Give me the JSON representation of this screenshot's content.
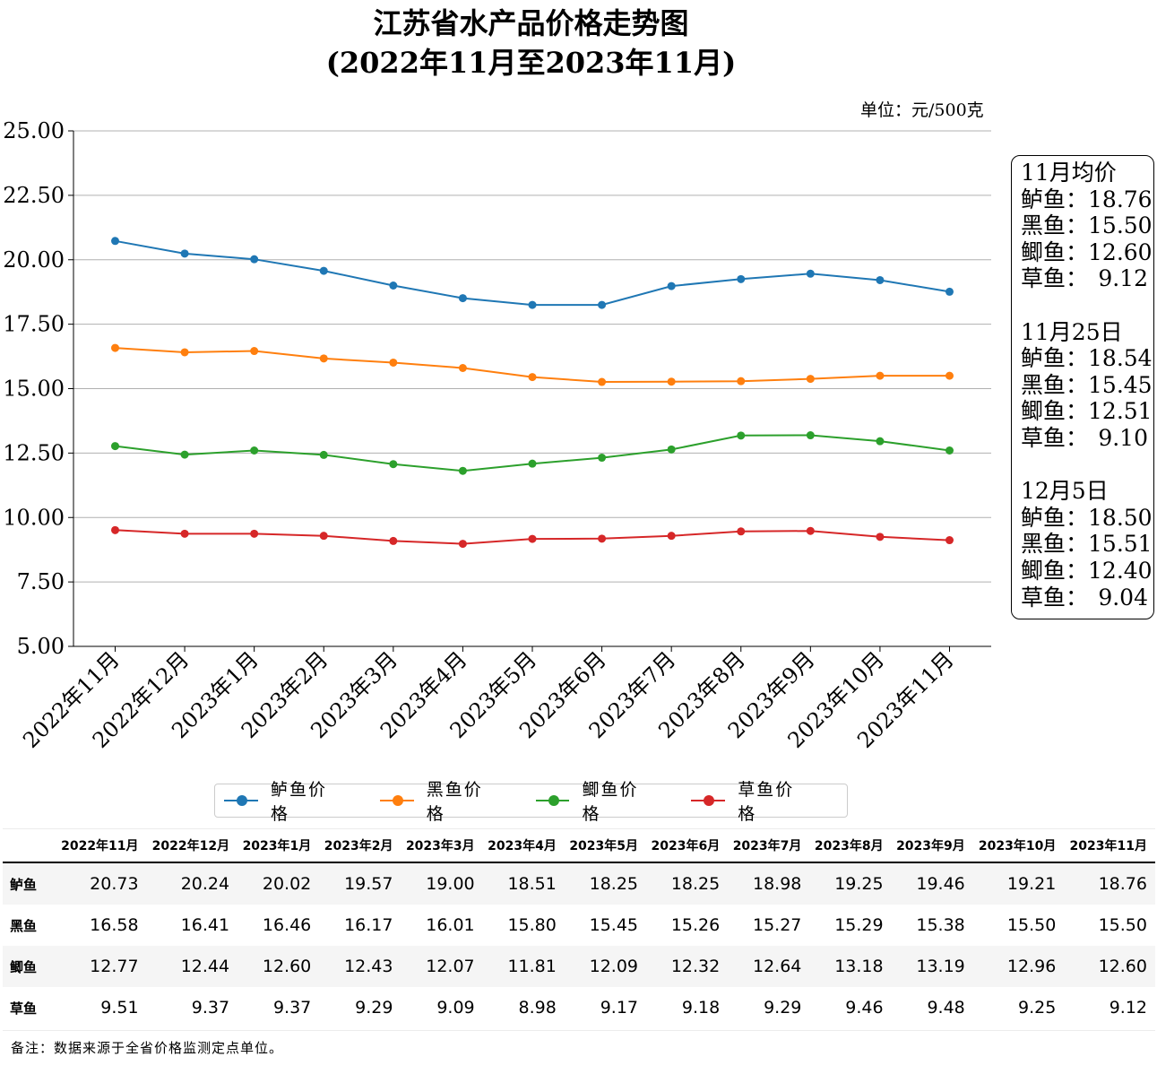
{
  "chart_data": {
    "type": "line",
    "title": "江苏省水产品价格走势图",
    "subtitle": "(2022年11月至2023年11月)",
    "unit": "单位：元/500克",
    "ylim": [
      5.0,
      25.0
    ],
    "yticks": [
      "5.00",
      "7.50",
      "10.00",
      "12.50",
      "15.00",
      "17.50",
      "20.00",
      "22.50",
      "25.00"
    ],
    "grid": true,
    "legend_position": "bottom-center",
    "categories": [
      "2022年11月",
      "2022年12月",
      "2023年1月",
      "2023年2月",
      "2023年3月",
      "2023年4月",
      "2023年5月",
      "2023年6月",
      "2023年7月",
      "2023年8月",
      "2023年9月",
      "2023年10月",
      "2023年11月"
    ],
    "series": [
      {
        "name": "鲈鱼价格",
        "color": "#1f77b4",
        "values": [
          20.73,
          20.24,
          20.02,
          19.57,
          19.0,
          18.51,
          18.25,
          18.25,
          18.98,
          19.25,
          19.46,
          19.21,
          18.76
        ]
      },
      {
        "name": "黑鱼价格",
        "color": "#ff7f0e",
        "values": [
          16.58,
          16.41,
          16.46,
          16.17,
          16.01,
          15.8,
          15.45,
          15.26,
          15.27,
          15.29,
          15.38,
          15.5,
          15.5
        ]
      },
      {
        "name": "鲫鱼价格",
        "color": "#2ca02c",
        "values": [
          12.77,
          12.44,
          12.6,
          12.43,
          12.07,
          11.81,
          12.09,
          12.32,
          12.64,
          13.18,
          13.19,
          12.96,
          12.6
        ]
      },
      {
        "name": "草鱼价格",
        "color": "#d62728",
        "values": [
          9.51,
          9.37,
          9.37,
          9.29,
          9.09,
          8.98,
          9.17,
          9.18,
          9.29,
          9.46,
          9.48,
          9.25,
          9.12
        ]
      }
    ]
  },
  "infobox": {
    "sections": [
      {
        "heading": "11月均价",
        "rows": [
          {
            "label": "鲈鱼：",
            "value": "18.76"
          },
          {
            "label": "黑鱼：",
            "value": "15.50"
          },
          {
            "label": "鲫鱼：",
            "value": "12.60"
          },
          {
            "label": "草鱼：",
            "value": "9.12"
          }
        ]
      },
      {
        "heading": "11月25日",
        "rows": [
          {
            "label": "鲈鱼：",
            "value": "18.54"
          },
          {
            "label": "黑鱼：",
            "value": "15.45"
          },
          {
            "label": "鲫鱼：",
            "value": "12.51"
          },
          {
            "label": "草鱼：",
            "value": "9.10"
          }
        ]
      },
      {
        "heading": "12月5日",
        "rows": [
          {
            "label": "鲈鱼：",
            "value": "18.50"
          },
          {
            "label": "黑鱼：",
            "value": "15.51"
          },
          {
            "label": "鲫鱼：",
            "value": "12.40"
          },
          {
            "label": "草鱼：",
            "value": "9.04"
          }
        ]
      }
    ]
  },
  "table": {
    "headers": [
      "2022年11月",
      "2022年12月",
      "2023年1月",
      "2023年2月",
      "2023年3月",
      "2023年4月",
      "2023年5月",
      "2023年6月",
      "2023年7月",
      "2023年8月",
      "2023年9月",
      "2023年10月",
      "2023年11月"
    ],
    "rows": [
      {
        "label": "鲈鱼",
        "values": [
          "20.73",
          "20.24",
          "20.02",
          "19.57",
          "19.00",
          "18.51",
          "18.25",
          "18.25",
          "18.98",
          "19.25",
          "19.46",
          "19.21",
          "18.76"
        ]
      },
      {
        "label": "黑鱼",
        "values": [
          "16.58",
          "16.41",
          "16.46",
          "16.17",
          "16.01",
          "15.80",
          "15.45",
          "15.26",
          "15.27",
          "15.29",
          "15.38",
          "15.50",
          "15.50"
        ]
      },
      {
        "label": "鲫鱼",
        "values": [
          "12.77",
          "12.44",
          "12.60",
          "12.43",
          "12.07",
          "11.81",
          "12.09",
          "12.32",
          "12.64",
          "13.18",
          "13.19",
          "12.96",
          "12.60"
        ]
      },
      {
        "label": "草鱼",
        "values": [
          "9.51",
          "9.37",
          "9.37",
          "9.29",
          "9.09",
          "8.98",
          "9.17",
          "9.18",
          "9.29",
          "9.46",
          "9.48",
          "9.25",
          "9.12"
        ]
      }
    ]
  },
  "note": "备注：数据来源于全省价格监测定点单位。"
}
